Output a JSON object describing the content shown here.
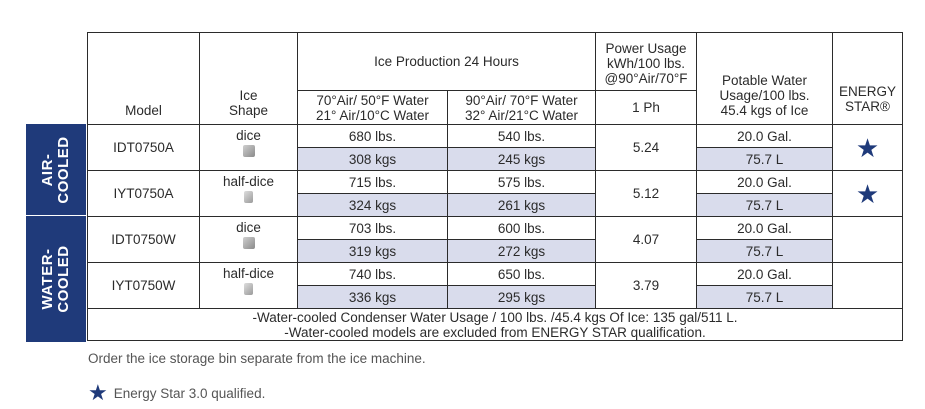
{
  "categories": {
    "air": "AIR-\nCOOLED",
    "water": "WATER-\nCOOLED"
  },
  "headers": {
    "model": "Model",
    "ice_shape": [
      "Ice",
      "Shape"
    ],
    "ice_production": "Ice Production 24 Hours",
    "cond1": [
      "70°Air/ 50°F Water",
      "21° Air/10°C Water"
    ],
    "cond2": [
      "90°Air/ 70°F Water",
      "32° Air/21°C Water"
    ],
    "power": [
      "Power Usage",
      "kWh/100 lbs.",
      "@90°Air/70°F"
    ],
    "phase": "1 Ph",
    "water": [
      "Potable Water",
      "Usage/100 lbs.",
      "45.4 kgs of Ice"
    ],
    "energy": [
      "ENERGY",
      "STAR®"
    ]
  },
  "rows": [
    {
      "model": "IDT0750A",
      "shape": "dice",
      "lbs1": "680 lbs.",
      "kgs1": "308 kgs",
      "lbs2": "540 lbs.",
      "kgs2": "245 kgs",
      "power": "5.24",
      "gal": "20.0 Gal.",
      "liters": "75.7 L",
      "energy_star": "★"
    },
    {
      "model": "IYT0750A",
      "shape": "half-dice",
      "lbs1": "715 lbs.",
      "kgs1": "324 kgs",
      "lbs2": "575 lbs.",
      "kgs2": "261 kgs",
      "power": "5.12",
      "gal": "20.0 Gal.",
      "liters": "75.7 L",
      "energy_star": "★"
    },
    {
      "model": "IDT0750W",
      "shape": "dice",
      "lbs1": "703 lbs.",
      "kgs1": "319 kgs",
      "lbs2": "600 lbs.",
      "kgs2": "272 kgs",
      "power": "4.07",
      "gal": "20.0 Gal.",
      "liters": "75.7 L",
      "energy_star": ""
    },
    {
      "model": "IYT0750W",
      "shape": "half-dice",
      "lbs1": "740 lbs.",
      "kgs1": "336 kgs",
      "lbs2": "650 lbs.",
      "kgs2": "295 kgs",
      "power": "3.79",
      "gal": "20.0 Gal.",
      "liters": "75.7 L",
      "energy_star": ""
    }
  ],
  "footnotes": [
    "-Water-cooled Condenser Water Usage / 100 lbs. /45.4 kgs Of Ice: 135 gal/511 L.",
    "-Water-cooled models are excluded from ENERGY STAR qualification."
  ],
  "notes": {
    "bin": "Order the ice storage bin separate from the ice machine.",
    "legend_icon": "★",
    "legend": "Energy Star 3.0 qualified."
  },
  "colors": {
    "navy": "#1f3a7a",
    "shade": "#d9dcec",
    "border": "#2b2b2b"
  },
  "icons": {
    "dice": "dice-cube-icon",
    "half_dice": "half-dice-cube-icon",
    "energy_star": "energy-star-icon"
  }
}
